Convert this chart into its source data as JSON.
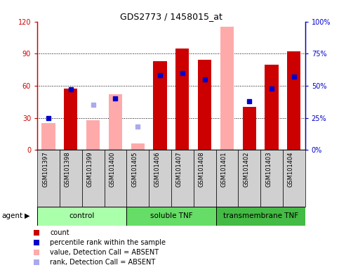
{
  "title": "GDS2773 / 1458015_at",
  "samples": [
    "GSM101397",
    "GSM101398",
    "GSM101399",
    "GSM101400",
    "GSM101405",
    "GSM101406",
    "GSM101407",
    "GSM101408",
    "GSM101401",
    "GSM101402",
    "GSM101403",
    "GSM101404"
  ],
  "red_bars": [
    0,
    57,
    0,
    0,
    0,
    83,
    95,
    84,
    0,
    40,
    80,
    92
  ],
  "pink_bars": [
    25,
    0,
    28,
    52,
    6,
    0,
    0,
    0,
    115,
    0,
    0,
    0
  ],
  "blue_squares": [
    25,
    47,
    -1,
    40,
    -1,
    58,
    60,
    55,
    -1,
    38,
    48,
    57
  ],
  "light_blue_squares": [
    -1,
    -1,
    35,
    -1,
    18,
    -1,
    -1,
    -1,
    -1,
    -1,
    -1,
    -1
  ],
  "groups": [
    {
      "label": "control",
      "start": 0,
      "end": 4,
      "color": "#aaffaa"
    },
    {
      "label": "soluble TNF",
      "start": 4,
      "end": 8,
      "color": "#66dd66"
    },
    {
      "label": "transmembrane TNF",
      "start": 8,
      "end": 12,
      "color": "#44bb44"
    }
  ],
  "ylim_left": [
    0,
    120
  ],
  "ylim_right": [
    0,
    100
  ],
  "yticks_left": [
    0,
    30,
    60,
    90,
    120
  ],
  "yticks_right": [
    0,
    25,
    50,
    75,
    100
  ],
  "ytick_labels_left": [
    "0",
    "30",
    "60",
    "90",
    "120"
  ],
  "ytick_labels_right": [
    "0%",
    "25%",
    "50%",
    "75%",
    "100%"
  ],
  "left_axis_color": "#cc0000",
  "right_axis_color": "#0000cc",
  "bar_color_red": "#cc0000",
  "bar_color_pink": "#ffaaaa",
  "dot_color_blue": "#0000cc",
  "dot_color_lightblue": "#aaaaee",
  "background_color": "#ffffff",
  "agent_label": "agent",
  "legend_items": [
    {
      "color": "#cc0000",
      "label": "count"
    },
    {
      "color": "#0000cc",
      "label": "percentile rank within the sample"
    },
    {
      "color": "#ffaaaa",
      "label": "value, Detection Call = ABSENT"
    },
    {
      "color": "#aaaaee",
      "label": "rank, Detection Call = ABSENT"
    }
  ]
}
